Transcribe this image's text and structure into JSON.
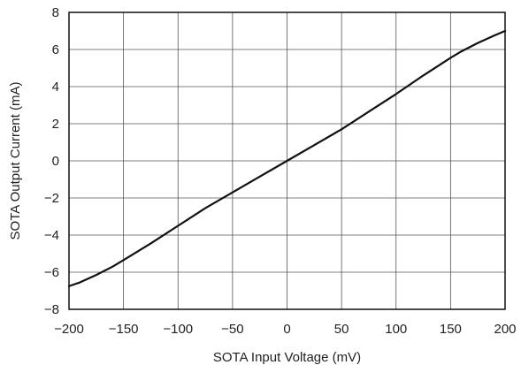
{
  "chart_data": {
    "type": "line",
    "title": "",
    "xlabel": "SOTA Input Voltage (mV)",
    "ylabel": "SOTA Output Current (mA)",
    "xlim": [
      -200,
      200
    ],
    "ylim": [
      -8,
      8
    ],
    "x_ticks": [
      -200,
      -150,
      -100,
      -50,
      0,
      50,
      100,
      150,
      200
    ],
    "y_ticks": [
      -8,
      -6,
      -4,
      -2,
      0,
      2,
      4,
      6,
      8
    ],
    "x_tick_labels": [
      "−200",
      "−150",
      "−100",
      "−50",
      "0",
      "50",
      "100",
      "150",
      "200"
    ],
    "y_tick_labels": [
      "−8",
      "−6",
      "−4",
      "−2",
      "0",
      "2",
      "4",
      "6",
      "8"
    ],
    "grid": true,
    "series": [
      {
        "color": "#111111",
        "x": [
          -200,
          -190,
          -175,
          -160,
          -150,
          -125,
          -100,
          -75,
          -50,
          -25,
          0,
          25,
          50,
          75,
          100,
          125,
          150,
          160,
          175,
          190,
          200
        ],
        "y": [
          -6.75,
          -6.55,
          -6.15,
          -5.7,
          -5.35,
          -4.45,
          -3.5,
          -2.55,
          -1.7,
          -0.85,
          0.0,
          0.85,
          1.7,
          2.65,
          3.6,
          4.6,
          5.55,
          5.9,
          6.35,
          6.75,
          7.0
        ]
      }
    ]
  }
}
